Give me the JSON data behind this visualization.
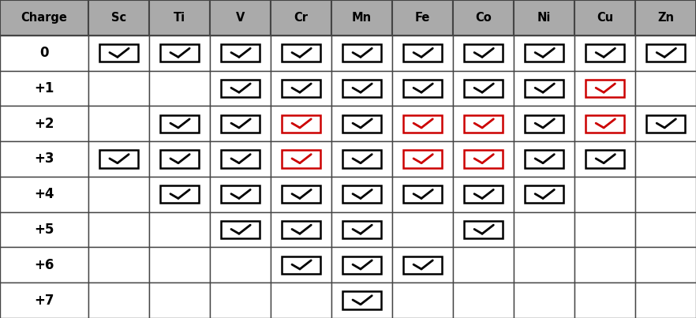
{
  "columns": [
    "Charge",
    "Sc",
    "Ti",
    "V",
    "Cr",
    "Mn",
    "Fe",
    "Co",
    "Ni",
    "Cu",
    "Zn"
  ],
  "rows": [
    "0",
    "+1",
    "+2",
    "+3",
    "+4",
    "+5",
    "+6",
    "+7"
  ],
  "checks": {
    "0": {
      "Sc": true,
      "Ti": true,
      "V": true,
      "Cr": true,
      "Mn": true,
      "Fe": true,
      "Co": true,
      "Ni": true,
      "Cu": true,
      "Zn": true
    },
    "+1": {
      "Sc": false,
      "Ti": false,
      "V": true,
      "Cr": true,
      "Mn": true,
      "Fe": true,
      "Co": true,
      "Ni": true,
      "Cu": true,
      "Zn": false
    },
    "+2": {
      "Sc": false,
      "Ti": true,
      "V": true,
      "Cr": true,
      "Mn": true,
      "Fe": true,
      "Co": true,
      "Ni": true,
      "Cu": true,
      "Zn": true
    },
    "+3": {
      "Sc": true,
      "Ti": true,
      "V": true,
      "Cr": true,
      "Mn": true,
      "Fe": true,
      "Co": true,
      "Ni": true,
      "Cu": true,
      "Zn": false
    },
    "+4": {
      "Sc": false,
      "Ti": true,
      "V": true,
      "Cr": true,
      "Mn": true,
      "Fe": true,
      "Co": true,
      "Ni": true,
      "Cu": false,
      "Zn": false
    },
    "+5": {
      "Sc": false,
      "Ti": false,
      "V": true,
      "Cr": true,
      "Mn": true,
      "Fe": false,
      "Co": true,
      "Ni": false,
      "Cu": false,
      "Zn": false
    },
    "+6": {
      "Sc": false,
      "Ti": false,
      "V": false,
      "Cr": true,
      "Mn": true,
      "Fe": true,
      "Co": false,
      "Ni": false,
      "Cu": false,
      "Zn": false
    },
    "+7": {
      "Sc": false,
      "Ti": false,
      "V": false,
      "Cr": false,
      "Mn": true,
      "Fe": false,
      "Co": false,
      "Ni": false,
      "Cu": false,
      "Zn": false
    }
  },
  "red_checks": {
    "0": {
      "Sc": false,
      "Ti": false,
      "V": false,
      "Cr": false,
      "Mn": false,
      "Fe": false,
      "Co": false,
      "Ni": false,
      "Cu": false,
      "Zn": false
    },
    "+1": {
      "Sc": false,
      "Ti": false,
      "V": false,
      "Cr": false,
      "Mn": false,
      "Fe": false,
      "Co": false,
      "Ni": false,
      "Cu": true,
      "Zn": false
    },
    "+2": {
      "Sc": false,
      "Ti": false,
      "V": false,
      "Cr": true,
      "Mn": false,
      "Fe": true,
      "Co": true,
      "Ni": false,
      "Cu": true,
      "Zn": false
    },
    "+3": {
      "Sc": false,
      "Ti": false,
      "V": false,
      "Cr": true,
      "Mn": false,
      "Fe": true,
      "Co": true,
      "Ni": false,
      "Cu": false,
      "Zn": false
    },
    "+4": {
      "Sc": false,
      "Ti": false,
      "V": false,
      "Cr": false,
      "Mn": false,
      "Fe": false,
      "Co": false,
      "Ni": false,
      "Cu": false,
      "Zn": false
    },
    "+5": {
      "Sc": false,
      "Ti": false,
      "V": false,
      "Cr": false,
      "Mn": false,
      "Fe": false,
      "Co": false,
      "Ni": false,
      "Cu": false,
      "Zn": false
    },
    "+6": {
      "Sc": false,
      "Ti": false,
      "V": false,
      "Cr": false,
      "Mn": false,
      "Fe": false,
      "Co": false,
      "Ni": false,
      "Cu": false,
      "Zn": false
    },
    "+7": {
      "Sc": false,
      "Ti": false,
      "V": false,
      "Cr": false,
      "Mn": false,
      "Fe": false,
      "Co": false,
      "Ni": false,
      "Cu": false,
      "Zn": false
    }
  },
  "header_bg": "#aaaaaa",
  "cell_bg": "#ffffff",
  "border_color": "#444444",
  "header_text_color": "#000000",
  "row_label_color": "#000000",
  "check_black": "#000000",
  "check_red": "#cc0000",
  "col_widths_raw": [
    1.45,
    1.0,
    1.0,
    1.0,
    1.0,
    1.0,
    1.0,
    1.0,
    1.0,
    1.0,
    1.0
  ],
  "header_fontsize": 10.5,
  "cell_fontsize": 11,
  "fig_width": 8.82,
  "fig_height": 4.03,
  "dpi": 100
}
